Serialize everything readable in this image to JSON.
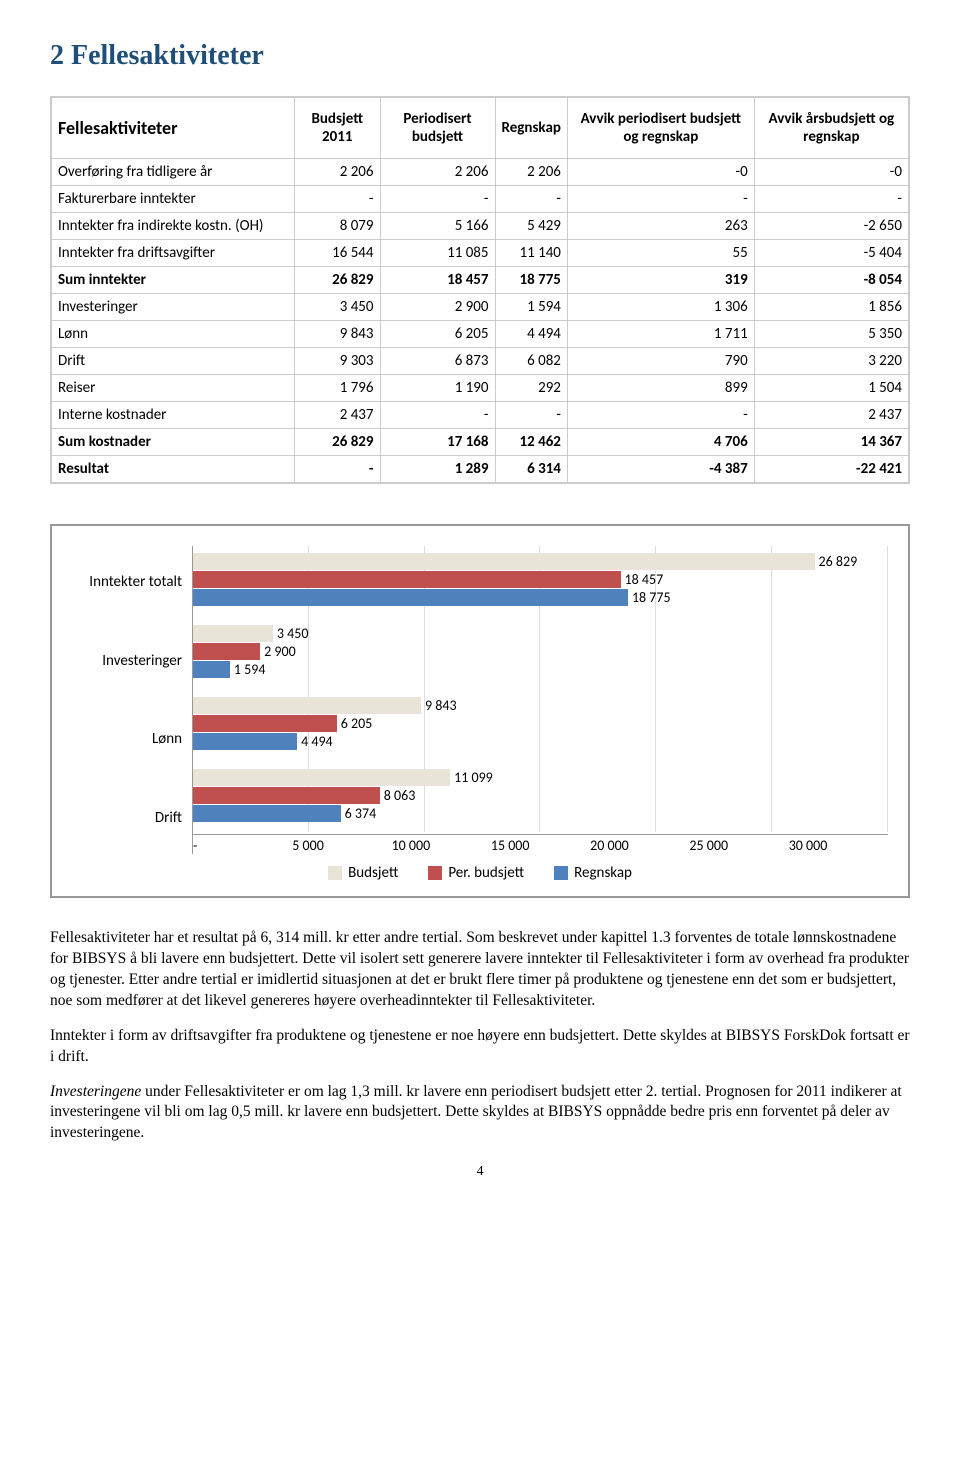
{
  "heading": "2  Fellesaktiviteter",
  "table": {
    "title": "Fellesaktiviteter",
    "columns": [
      "Budsjett 2011",
      "Periodisert budsjett",
      "Regnskap",
      "Avvik periodisert budsjett og regnskap",
      "Avvik årsbudsjett og regnskap"
    ],
    "rows": [
      {
        "label": "Overføring fra tidligere år",
        "cells": [
          "2 206",
          "2 206",
          "2 206",
          "-0",
          "-0"
        ],
        "bold": false
      },
      {
        "label": "Fakturerbare inntekter",
        "cells": [
          "-",
          "-",
          "-",
          "-",
          "-"
        ],
        "bold": false
      },
      {
        "label": "Inntekter fra indirekte kostn. (OH)",
        "cells": [
          "8 079",
          "5 166",
          "5 429",
          "263",
          "-2 650"
        ],
        "bold": false
      },
      {
        "label": "Inntekter fra driftsavgifter",
        "cells": [
          "16 544",
          "11 085",
          "11 140",
          "55",
          "-5 404"
        ],
        "bold": false
      },
      {
        "label": "Sum inntekter",
        "cells": [
          "26 829",
          "18 457",
          "18 775",
          "319",
          "-8 054"
        ],
        "bold": true
      },
      {
        "label": "Investeringer",
        "cells": [
          "3 450",
          "2 900",
          "1 594",
          "1 306",
          "1 856"
        ],
        "bold": false
      },
      {
        "label": "Lønn",
        "cells": [
          "9 843",
          "6 205",
          "4 494",
          "1 711",
          "5 350"
        ],
        "bold": false
      },
      {
        "label": "Drift",
        "cells": [
          "9 303",
          "6 873",
          "6 082",
          "790",
          "3 220"
        ],
        "bold": false
      },
      {
        "label": "Reiser",
        "cells": [
          "1 796",
          "1 190",
          "292",
          "899",
          "1 504"
        ],
        "bold": false
      },
      {
        "label": "Interne kostnader",
        "cells": [
          "2 437",
          "-",
          "-",
          "-",
          "2 437"
        ],
        "bold": false
      },
      {
        "label": "Sum kostnader",
        "cells": [
          "26 829",
          "17 168",
          "12 462",
          "4 706",
          "14 367"
        ],
        "bold": true
      },
      {
        "label": "Resultat",
        "cells": [
          "-",
          "1 289",
          "6 314",
          "-4 387",
          "-22 421"
        ],
        "bold": true
      }
    ]
  },
  "chart": {
    "type": "bar",
    "xmax": 30000,
    "xticks": [
      "-",
      "5 000",
      "10 000",
      "15 000",
      "20 000",
      "25 000",
      "30 000"
    ],
    "series_colors": {
      "budsjett": "#e8e4d8",
      "per": "#c0504d",
      "regnskap": "#4f81bd"
    },
    "legend": [
      "Budsjett",
      "Per. budsjett",
      "Regnskap"
    ],
    "categories": [
      {
        "label": "Inntekter totalt",
        "values": [
          26829,
          18457,
          18775
        ],
        "labels": [
          "26 829",
          "18 457",
          "18 775"
        ]
      },
      {
        "label": "Investeringer",
        "values": [
          3450,
          2900,
          1594
        ],
        "labels": [
          "3 450",
          "2 900",
          "1 594"
        ]
      },
      {
        "label": "Lønn",
        "values": [
          9843,
          6205,
          4494
        ],
        "labels": [
          "9 843",
          "6 205",
          "4 494"
        ]
      },
      {
        "label": "Drift",
        "values": [
          11099,
          8063,
          6374
        ],
        "labels": [
          "11 099",
          "8 063",
          "6 374"
        ]
      }
    ]
  },
  "paragraphs": {
    "p1": "Fellesaktiviteter har et resultat på 6, 314 mill. kr etter andre tertial. Som beskrevet under kapittel 1.3 forventes de totale lønnskostnadene for BIBSYS å bli lavere enn budsjettert. Dette vil isolert sett generere lavere inntekter til Fellesaktiviteter i form av overhead fra produkter og tjenester. Etter andre tertial er imidlertid situasjonen at det er brukt flere timer på produktene og tjenestene enn det som er budsjettert, noe som medfører at det likevel genereres høyere overheadinntekter til Fellesaktiviteter.",
    "p2": "Inntekter i form av driftsavgifter fra produktene og tjenestene er noe høyere enn budsjettert. Dette skyldes at BIBSYS ForskDok fortsatt er i drift.",
    "p3a": "Investeringene",
    "p3b": " under Fellesaktiviteter er om lag 1,3 mill. kr lavere enn periodisert budsjett etter 2. tertial. Prognosen for 2011 indikerer at investeringene vil bli om lag 0,5 mill. kr lavere enn budsjettert. Dette skyldes at BIBSYS oppnådde bedre pris enn forventet på deler av investeringene."
  },
  "page_number": "4"
}
